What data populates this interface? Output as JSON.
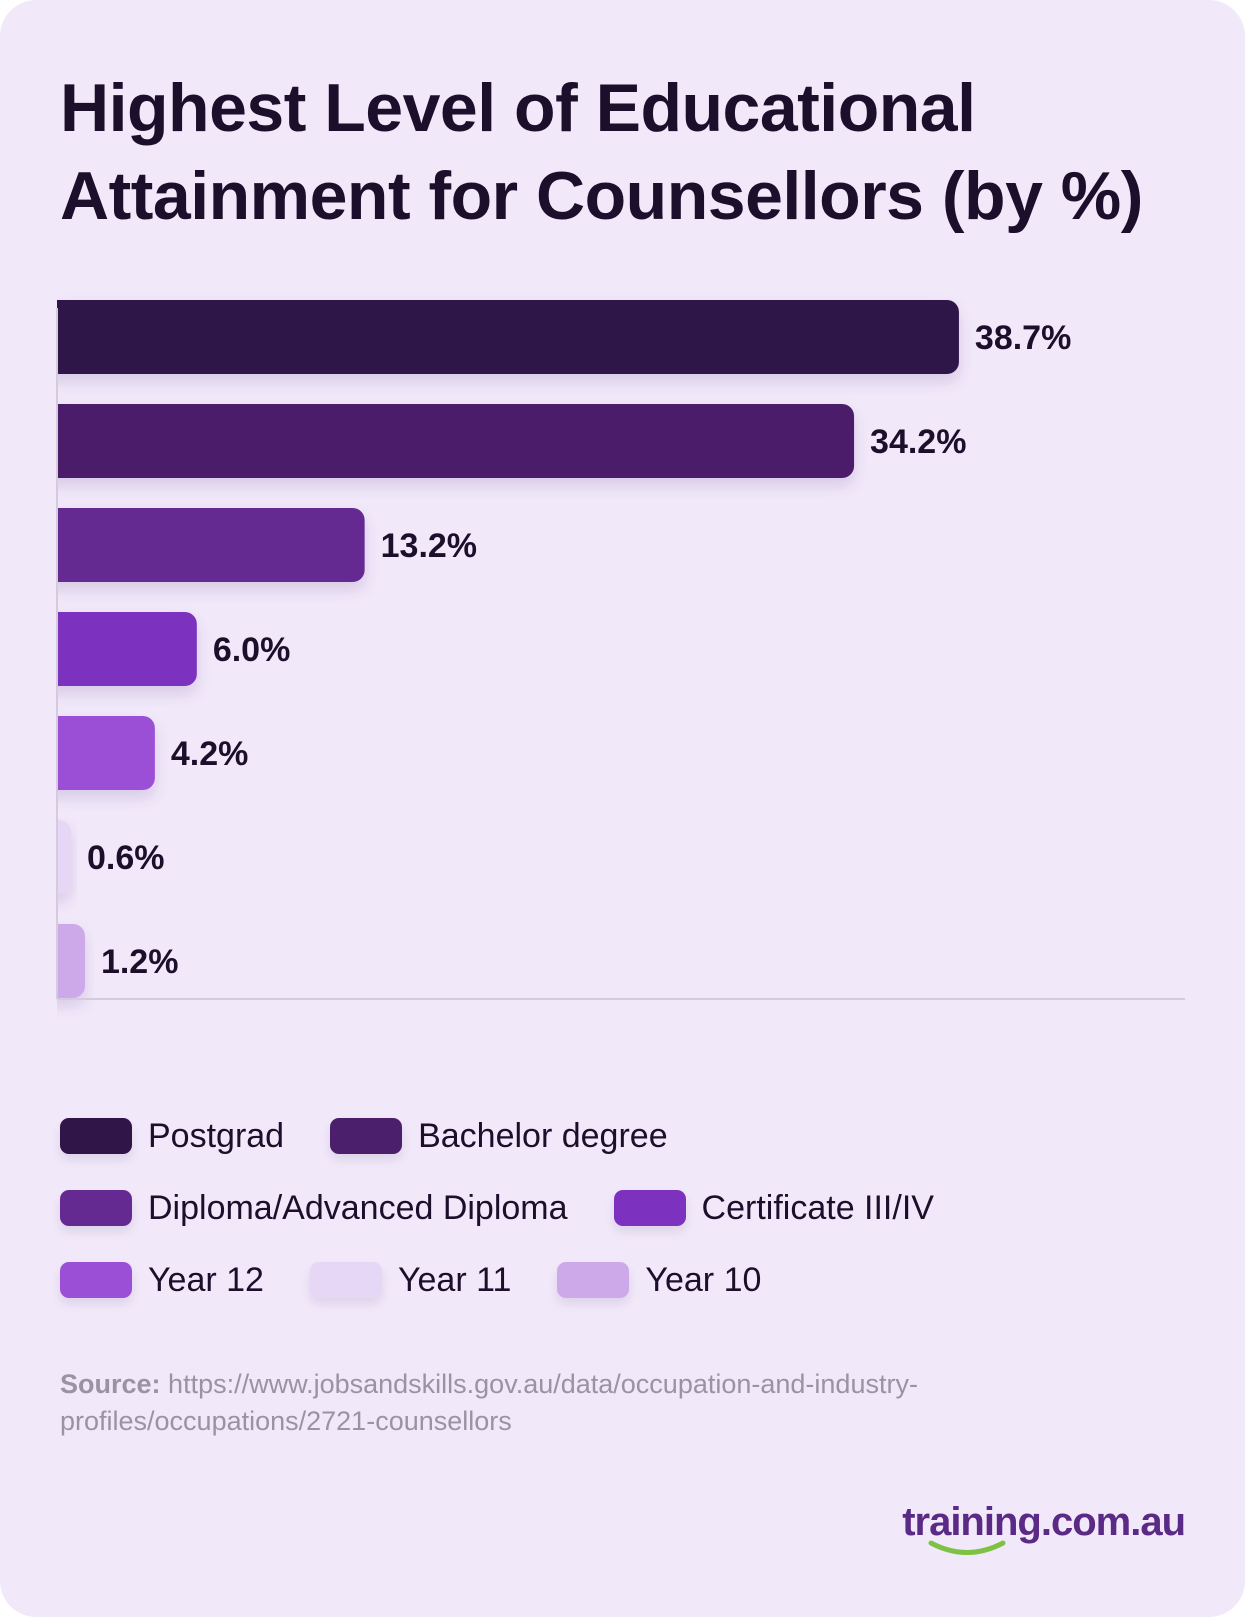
{
  "title": "Highest Level of Educational Attainment for Counsellors (by %)",
  "chart_data": {
    "type": "bar",
    "orientation": "horizontal",
    "categories": [
      "Postgrad",
      "Bachelor degree",
      "Diploma/Advanced Diploma",
      "Certificate III/IV",
      "Year 12",
      "Year 11",
      "Year 10"
    ],
    "values": [
      38.7,
      34.2,
      13.2,
      6.0,
      4.2,
      0.6,
      1.2
    ],
    "value_labels": [
      "38.7%",
      "34.2%",
      "13.2%",
      "6.0%",
      "4.2%",
      "0.6%",
      "1.2%"
    ],
    "colors": [
      "#2f1548",
      "#4b1f6b",
      "#652a92",
      "#7c32bf",
      "#9b4fd6",
      "#e5d7f5",
      "#cda9ea"
    ],
    "xlim": [
      0,
      48.4
    ],
    "grid": false,
    "legend_position": "bottom"
  },
  "legend": {
    "rows": [
      [
        {
          "label": "Postgrad",
          "color": "#2f1548"
        },
        {
          "label": "Bachelor degree",
          "color": "#4b1f6b"
        }
      ],
      [
        {
          "label": "Diploma/Advanced Diploma",
          "color": "#652a92"
        },
        {
          "label": "Certificate III/IV",
          "color": "#7c32bf"
        }
      ],
      [
        {
          "label": "Year 12",
          "color": "#9b4fd6"
        },
        {
          "label": "Year 11",
          "color": "#e5d7f5"
        },
        {
          "label": "Year 10",
          "color": "#cda9ea"
        }
      ]
    ]
  },
  "source": {
    "label": "Source:",
    "url": "https://www.jobsandskills.gov.au/data/occupation-and-industry-profiles/occupations/2721-counsellors"
  },
  "brand": {
    "name": "training.com.au",
    "smile_color": "#7dc242"
  }
}
